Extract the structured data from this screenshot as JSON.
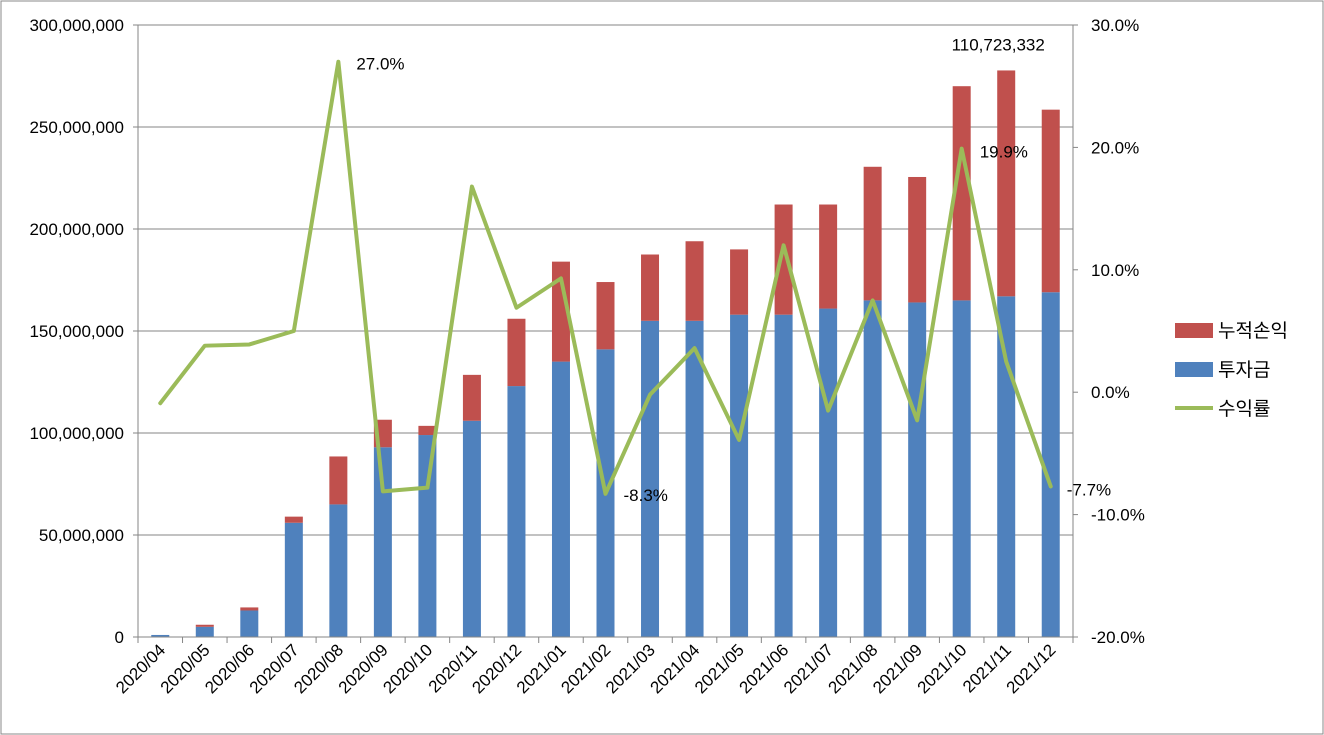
{
  "chart_data": {
    "type": "bar",
    "stacked": true,
    "categories": [
      "2020/04",
      "2020/05",
      "2020/06",
      "2020/07",
      "2020/08",
      "2020/09",
      "2020/10",
      "2020/11",
      "2020/12",
      "2021/01",
      "2021/02",
      "2021/03",
      "2021/04",
      "2021/05",
      "2021/06",
      "2021/07",
      "2021/08",
      "2021/09",
      "2021/10",
      "2021/11",
      "2021/12"
    ],
    "series": [
      {
        "name": "투자금",
        "type": "bar",
        "axis": "left",
        "color": "#4f81bd",
        "values": [
          1000000,
          5000000,
          13000000,
          56000000,
          65000000,
          93000000,
          99000000,
          106000000,
          123000000,
          135000000,
          141000000,
          155000000,
          155000000,
          158000000,
          158000000,
          161000000,
          165000000,
          164000000,
          165000000,
          167000000,
          169000000
        ]
      },
      {
        "name": "누적손익",
        "type": "bar",
        "axis": "left",
        "color": "#c0504d",
        "values": [
          0,
          1000000,
          1500000,
          3000000,
          23500000,
          13500000,
          4500000,
          22500000,
          33000000,
          49000000,
          33000000,
          32500000,
          39000000,
          32000000,
          54000000,
          51000000,
          65500000,
          61500000,
          105000000,
          110723332,
          89500000
        ]
      },
      {
        "name": "수익률",
        "type": "line",
        "axis": "right",
        "color": "#9bbb59",
        "values": [
          -0.9,
          3.8,
          3.9,
          5.0,
          27.0,
          -8.1,
          -7.8,
          16.8,
          6.9,
          9.3,
          -8.3,
          -0.2,
          3.6,
          -3.9,
          12.0,
          -1.5,
          7.5,
          -2.3,
          19.9,
          2.5,
          -7.7
        ]
      }
    ],
    "y_left": {
      "min": 0,
      "max": 300000000,
      "ticks": [
        0,
        50000000,
        100000000,
        150000000,
        200000000,
        250000000,
        300000000
      ],
      "tick_labels": [
        "0",
        "50,000,000",
        "100,000,000",
        "150,000,000",
        "200,000,000",
        "250,000,000",
        "300,000,000"
      ]
    },
    "y_right": {
      "min": -20,
      "max": 30,
      "ticks": [
        -20,
        -10,
        0,
        10,
        20,
        30
      ],
      "tick_labels": [
        "-20.0%",
        "-10.0%",
        "0.0%",
        "10.0%",
        "20.0%",
        "30.0%"
      ]
    },
    "annotations": [
      {
        "series": "수익률",
        "index": 4,
        "text": "27.0%"
      },
      {
        "series": "수익률",
        "index": 10,
        "text": "-8.3%"
      },
      {
        "series": "수익률",
        "index": 18,
        "text": "19.9%"
      },
      {
        "series": "수익률",
        "index": 20,
        "text": "-7.7%"
      },
      {
        "series": "누적손익",
        "index": 19,
        "text": "110,723,332"
      }
    ],
    "legend": {
      "position": "right",
      "order": [
        "누적손익",
        "투자금",
        "수익률"
      ]
    },
    "grid": true
  }
}
